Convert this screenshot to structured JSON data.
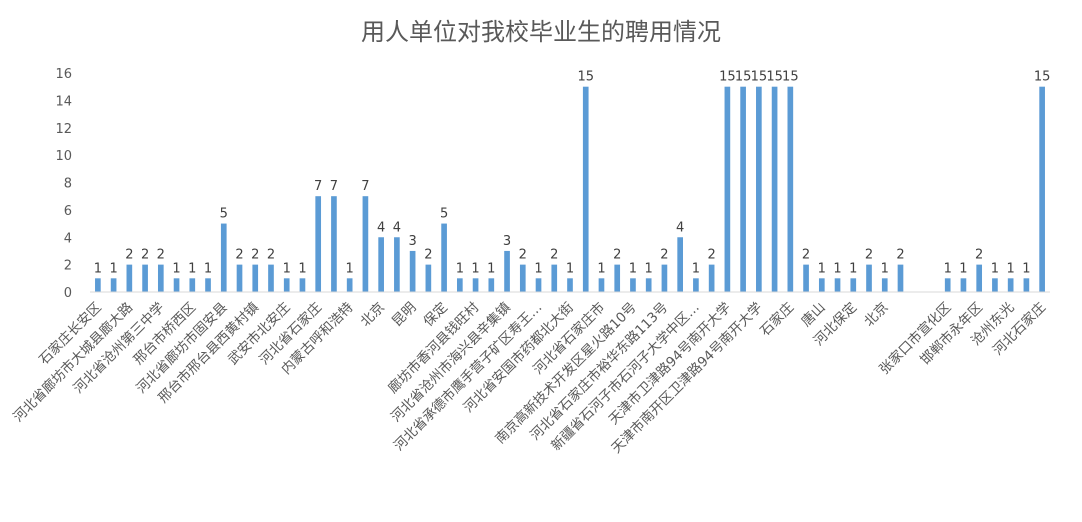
{
  "chart_data": {
    "type": "bar",
    "title": "用人单位对我校毕业生的聘用情况",
    "xlabel": "",
    "ylabel": "",
    "ylim": [
      0,
      16
    ],
    "yticks": [
      0,
      2,
      4,
      6,
      8,
      10,
      12,
      14,
      16
    ],
    "grid": false,
    "bar_color": "#5B9BD5",
    "categories": [
      "石家庄长安区",
      "",
      "河北省廊坊市大城县廊大路",
      "",
      "河北省沧州第三中学",
      "",
      "邢台市桥西区",
      "",
      "河北省廊坊市固安县",
      "",
      "邢台市邢台县西黄村镇",
      "",
      "武安市北安庄",
      "",
      "河北省石家庄",
      "",
      "内蒙古呼和浩特",
      "",
      "北京",
      "",
      "昆明",
      "",
      "保定",
      "",
      "廊坊市香河县钱旺村",
      "",
      "河北省沧州市海兴县辛集镇",
      "",
      "河北省承德市鹰手营子矿区寿王…",
      "",
      "河北省安国市药都北大街",
      "",
      "河北省石家庄市",
      "",
      "南京高新技术开发区星火路10号",
      "",
      "河北省石家庄市裕华东路113号",
      "",
      "新疆省石河子市石河子大学中区…",
      "",
      "天津市卫津路94号南开大学",
      "",
      "天津市南开区卫津路94号南开大学",
      "",
      "石家庄",
      "",
      "唐山",
      "",
      "河北保定",
      "",
      "北京",
      "",
      "",
      "",
      "张家口市宣化区",
      "",
      "邯郸市永年区",
      "",
      "沧州东光",
      "",
      "河北石家庄"
    ],
    "values": [
      1,
      1,
      2,
      2,
      2,
      1,
      1,
      1,
      5,
      2,
      2,
      2,
      1,
      1,
      7,
      7,
      1,
      7,
      4,
      4,
      3,
      2,
      5,
      1,
      1,
      1,
      3,
      2,
      1,
      2,
      1,
      15,
      1,
      2,
      1,
      1,
      2,
      4,
      1,
      2,
      15,
      15,
      15,
      15,
      15,
      2,
      1,
      1,
      1,
      2,
      1,
      2,
      null,
      null,
      1,
      1,
      2,
      1,
      1,
      1,
      15
    ],
    "data_labels": [
      "1",
      "1",
      "2",
      "2",
      "2",
      "1",
      "1",
      "1",
      "5",
      "2",
      "2",
      "2",
      "1",
      "1",
      "7",
      "7",
      "1",
      "7",
      "4",
      "4",
      "3",
      "2",
      "5",
      "1",
      "1",
      "1",
      "3",
      "2",
      "1",
      "2",
      "1",
      "15",
      "1",
      "2",
      "1",
      "1",
      "2",
      "4",
      "1",
      "2",
      "15",
      "15",
      "15",
      "15",
      "15",
      "2",
      "1",
      "1",
      "1",
      "2",
      "1",
      "2",
      "",
      "",
      "1",
      "1",
      "2",
      "1",
      "1",
      "1",
      "15"
    ]
  }
}
